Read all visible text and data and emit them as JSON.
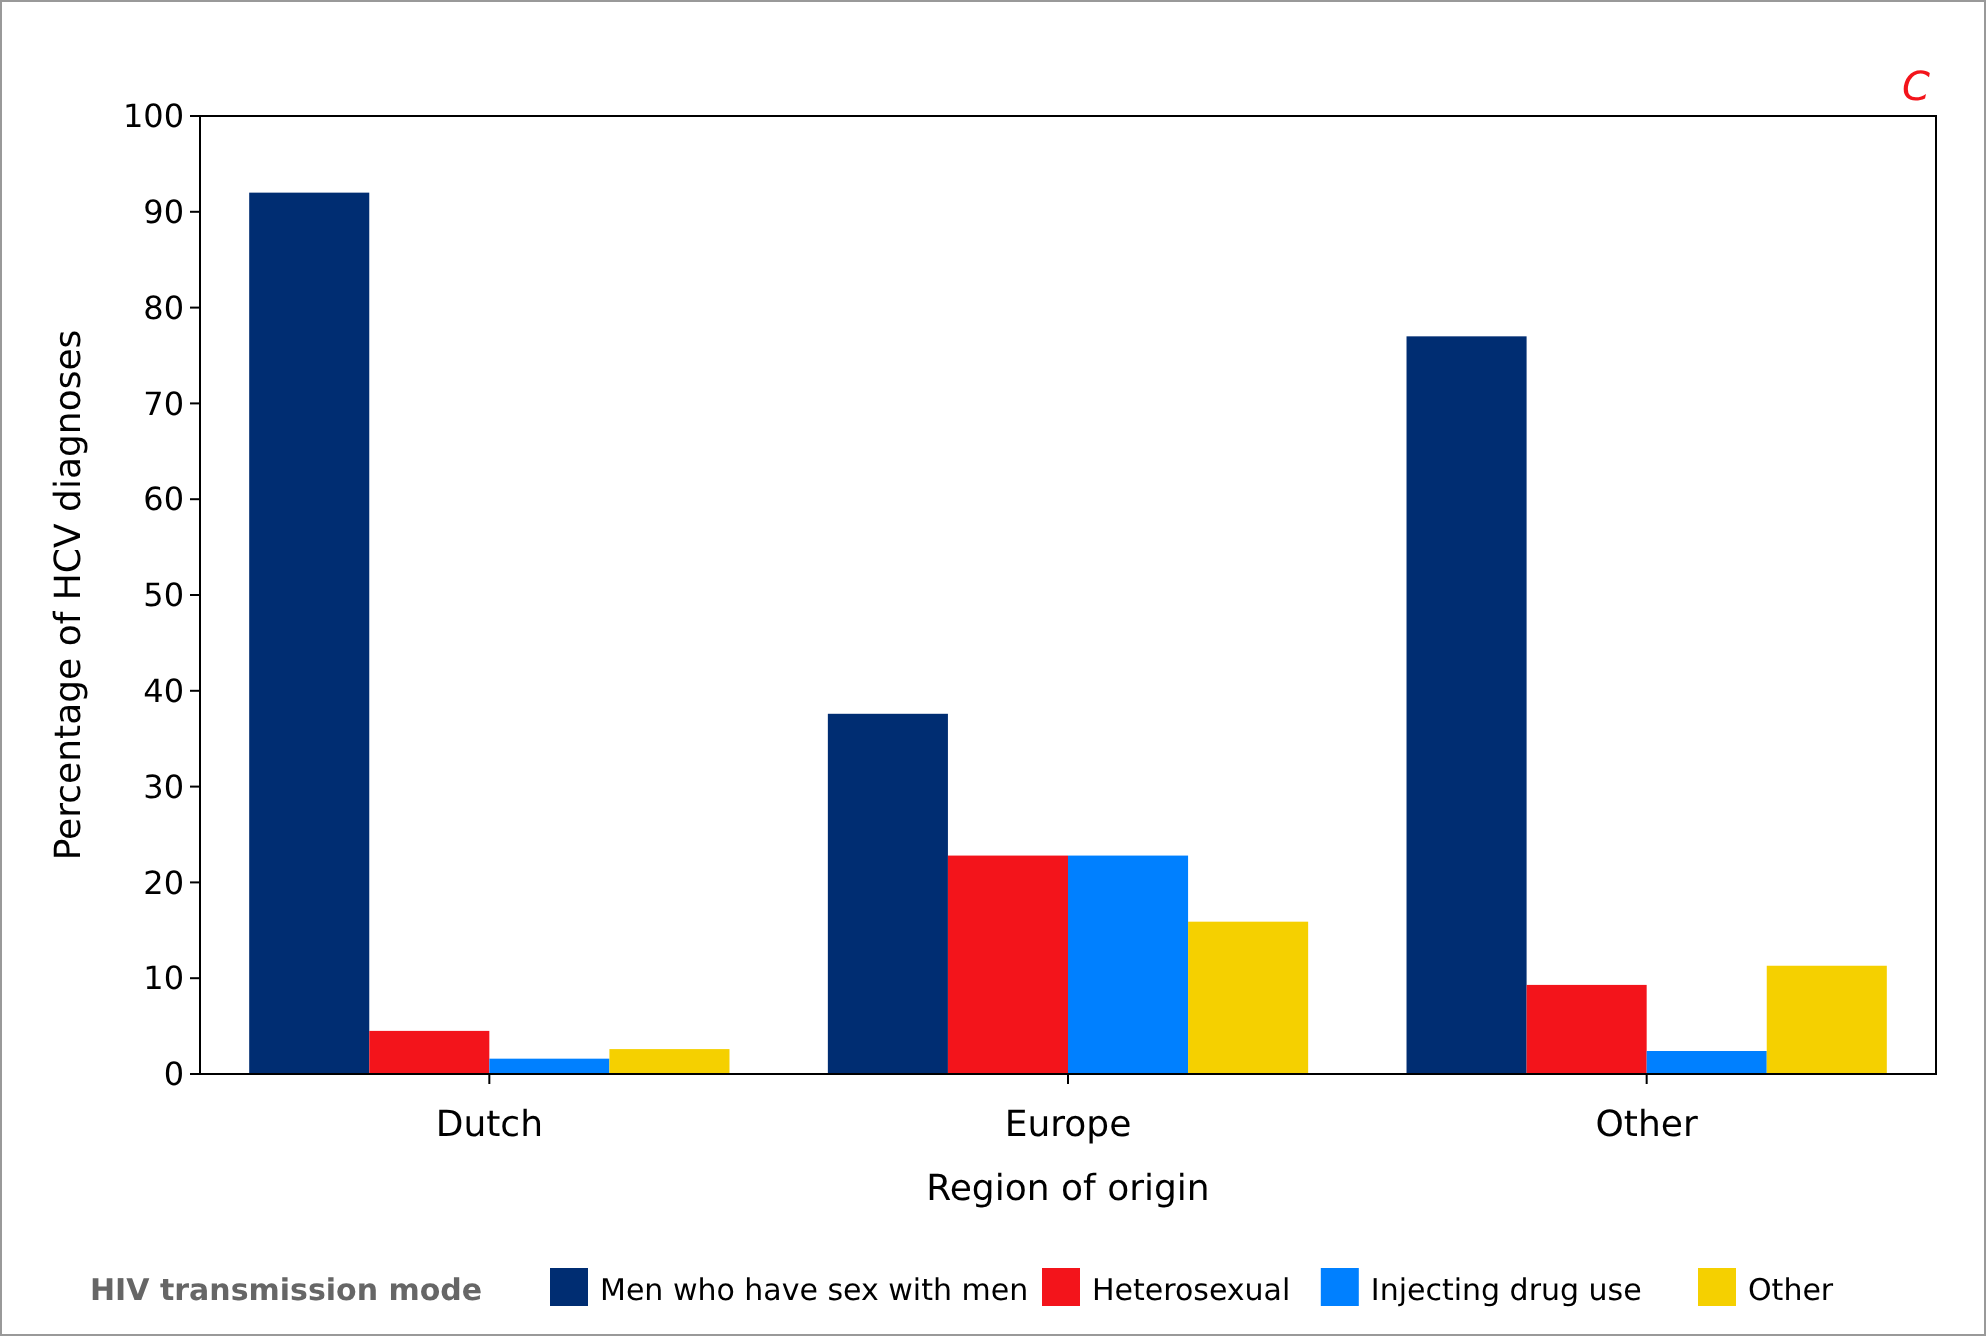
{
  "chart_data": {
    "type": "bar",
    "xlabel": "Region of origin",
    "ylabel": "Percentage of HCV diagnoses",
    "legend_title": "HIV transmission mode",
    "annotations": [
      "C"
    ],
    "categories": [
      "Dutch",
      "Europe",
      "Other"
    ],
    "series": [
      {
        "name": "Men who have sex with men",
        "color": "#002d72",
        "values": [
          92,
          37.6,
          77
        ]
      },
      {
        "name": "Heterosexual",
        "color": "#f3141b",
        "values": [
          4.5,
          22.8,
          9.3
        ]
      },
      {
        "name": "Injecting drug use",
        "color": "#0080ff",
        "values": [
          1.6,
          22.8,
          2.4
        ]
      },
      {
        "name": "Other",
        "color": "#f5d000",
        "values": [
          2.6,
          15.9,
          11.3
        ]
      }
    ],
    "ylim": [
      0,
      100
    ],
    "yticks": [
      0,
      10,
      20,
      30,
      40,
      50,
      60,
      70,
      80,
      90,
      100
    ],
    "grid": false,
    "legend": "bottom"
  }
}
